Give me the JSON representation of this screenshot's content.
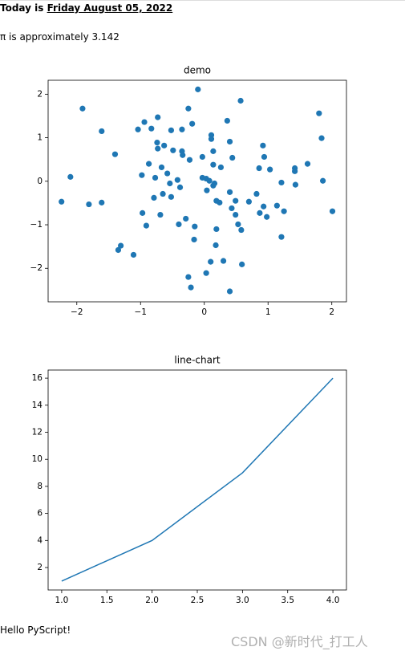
{
  "header": {
    "today_label": "Today is",
    "date": "Friday August 05, 2022"
  },
  "pi_text": "π is approximately 3.142",
  "chart_data": [
    {
      "type": "scatter",
      "title": "demo",
      "color": "#1f77b4",
      "x": [
        -2.24,
        -2.1,
        -1.91,
        -1.81,
        -1.61,
        -1.61,
        -1.4,
        -1.35,
        -1.31,
        -1.11,
        -1.04,
        -0.98,
        -0.97,
        -0.94,
        -0.91,
        -0.87,
        -0.83,
        -0.79,
        -0.77,
        -0.74,
        -0.73,
        -0.73,
        -0.69,
        -0.67,
        -0.65,
        -0.63,
        -0.58,
        -0.54,
        -0.52,
        -0.52,
        -0.49,
        -0.42,
        -0.4,
        -0.38,
        -0.35,
        -0.35,
        -0.34,
        -0.29,
        -0.25,
        -0.25,
        -0.23,
        -0.21,
        -0.19,
        -0.16,
        -0.15,
        -0.1,
        -0.03,
        -0.03,
        0.03,
        0.04,
        0.03,
        0.08,
        0.1,
        0.11,
        0.11,
        0.14,
        0.14,
        0.14,
        0.16,
        0.18,
        0.19,
        0.19,
        0.24,
        0.26,
        0.3,
        0.36,
        0.4,
        0.4,
        0.4,
        0.43,
        0.44,
        0.49,
        0.49,
        0.53,
        0.57,
        0.58,
        0.59,
        0.7,
        0.82,
        0.86,
        0.87,
        0.92,
        0.93,
        0.94,
        0.98,
        1.03,
        1.14,
        1.21,
        1.21,
        1.25,
        1.42,
        1.42,
        1.43,
        1.62,
        1.8,
        1.84,
        1.86,
        2.01
      ],
      "values": [
        -0.47,
        0.1,
        1.67,
        -0.53,
        1.15,
        -0.49,
        0.62,
        -1.58,
        -1.48,
        -1.69,
        1.19,
        0.14,
        -0.73,
        1.36,
        -1.02,
        0.4,
        1.21,
        -0.38,
        0.08,
        0.89,
        0.75,
        1.47,
        -0.77,
        0.32,
        -0.29,
        0.82,
        0.18,
        -0.05,
        1.17,
        -0.36,
        0.71,
        0.03,
        -0.99,
        -0.14,
        1.19,
        0.69,
        0.6,
        -0.86,
        1.67,
        -2.2,
        0.49,
        -2.44,
        1.32,
        -1.34,
        -1.04,
        2.11,
        0.56,
        0.08,
        0.06,
        -0.21,
        -2.11,
        0.01,
        -1.85,
        1.06,
        0.97,
        0.38,
        0.69,
        -0.1,
        -0.05,
        -1.47,
        -0.45,
        -1.1,
        -0.49,
        0.32,
        -1.83,
        1.39,
        0.91,
        -0.25,
        -2.53,
        -0.62,
        0.54,
        -0.45,
        -0.77,
        -0.99,
        1.85,
        -1.12,
        -1.91,
        -0.47,
        -0.29,
        0.3,
        -0.73,
        0.82,
        -0.58,
        0.56,
        -0.82,
        0.27,
        -0.56,
        -0.03,
        -1.28,
        -0.69,
        0.3,
        0.23,
        -0.08,
        0.4,
        1.56,
        0.99,
        0.01,
        -0.69
      ],
      "xlim": [
        -2.45,
        2.23
      ],
      "ylim": [
        -2.77,
        2.32
      ],
      "xticks": [
        {
          "value": -2,
          "label": "−2"
        },
        {
          "value": -1,
          "label": "−1"
        },
        0,
        1,
        2
      ],
      "yticks": [
        {
          "value": -2,
          "label": "−2"
        },
        {
          "value": -1,
          "label": "−1"
        },
        0,
        1,
        2
      ]
    },
    {
      "type": "line",
      "title": "line-chart",
      "color": "#1f77b4",
      "x": [
        1,
        2,
        3,
        4
      ],
      "values": [
        1,
        4,
        9,
        16
      ],
      "xlim": [
        0.85,
        4.15
      ],
      "ylim": [
        0.34,
        16.6
      ],
      "xticks": [
        {
          "value": 1,
          "label": "1.0"
        },
        {
          "value": 1.5,
          "label": "1.5"
        },
        {
          "value": 2,
          "label": "2.0"
        },
        {
          "value": 2.5,
          "label": "2.5"
        },
        {
          "value": 3,
          "label": "3.0"
        },
        {
          "value": 3.5,
          "label": "3.5"
        },
        {
          "value": 4,
          "label": "4.0"
        }
      ],
      "yticks": [
        2,
        4,
        6,
        8,
        10,
        12,
        14,
        16
      ]
    }
  ],
  "footer_text": "Hello PyScript!",
  "watermark": "CSDN @新时代_打工人"
}
